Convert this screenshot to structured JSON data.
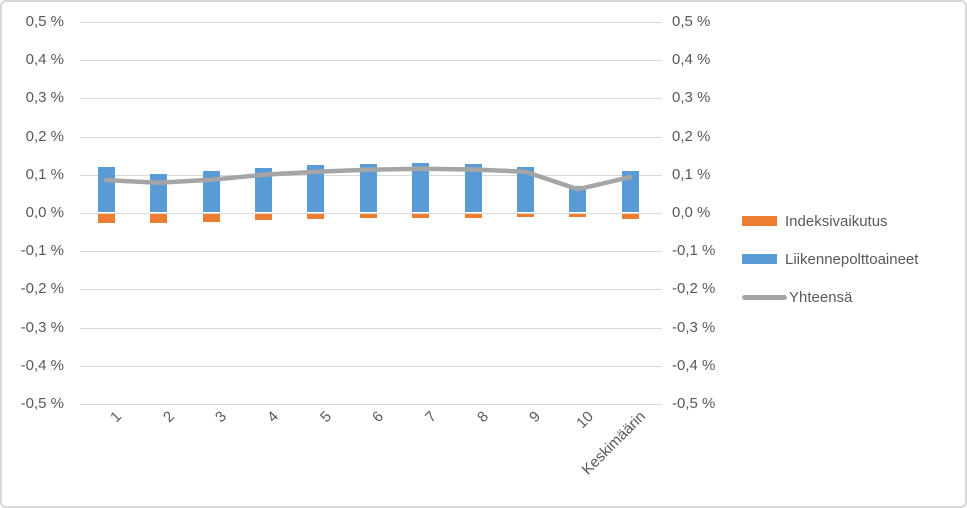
{
  "chart_data": {
    "type": "bar",
    "subtype": "stacked-bars-with-line-overlay",
    "categories": [
      "1",
      "2",
      "3",
      "4",
      "5",
      "6",
      "7",
      "8",
      "9",
      "10",
      "Keskimäärin"
    ],
    "series": [
      {
        "name": "Indeksivaikutus",
        "type": "bar",
        "color": "#ED7D31",
        "values": [
          -0.026,
          -0.025,
          -0.024,
          -0.019,
          -0.016,
          -0.014,
          -0.013,
          -0.012,
          -0.011,
          -0.01,
          -0.016
        ]
      },
      {
        "name": "Liikennepolttoaineet",
        "type": "bar",
        "color": "#5B9BD5",
        "values": [
          0.12,
          0.102,
          0.11,
          0.119,
          0.125,
          0.129,
          0.131,
          0.128,
          0.12,
          0.07,
          0.11
        ]
      },
      {
        "name": "Yhteensä",
        "type": "line",
        "color": "#A5A5A5",
        "values": [
          0.086,
          0.079,
          0.087,
          0.1,
          0.108,
          0.113,
          0.116,
          0.114,
          0.108,
          0.062,
          0.094
        ]
      }
    ],
    "title": "",
    "xlabel": "",
    "ylabel": "",
    "y_axis": {
      "min": -0.5,
      "max": 0.5,
      "step": 0.1,
      "unit": "%",
      "decimal_separator": ",",
      "tick_labels": [
        "0,5 %",
        "0,4 %",
        "0,3 %",
        "0,2 %",
        "0,1 %",
        "0,0 %",
        "-0,1 %",
        "-0,2 %",
        "-0,3 %",
        "-0,4 %",
        "-0,5 %"
      ],
      "mirrored_right_axis": true
    },
    "grid": true,
    "legend_position": "right",
    "x_tick_rotation_deg": 45
  },
  "legend": {
    "items": [
      {
        "label": "Indeksivaikutus",
        "swatch": "bar",
        "color": "#ED7D31"
      },
      {
        "label": "Liikennepolttoaineet",
        "swatch": "bar",
        "color": "#5B9BD5"
      },
      {
        "label": "Yhteensä",
        "swatch": "line",
        "color": "#A5A5A5"
      }
    ]
  },
  "colors": {
    "orange_series": "#ED7D31",
    "blue_series": "#5B9BD5",
    "gray_line": "#A5A5A5",
    "axis_text": "#595959",
    "gridline": "#D9D9D9",
    "frame_border": "#D7D7D7",
    "background": "#FFFFFF"
  }
}
